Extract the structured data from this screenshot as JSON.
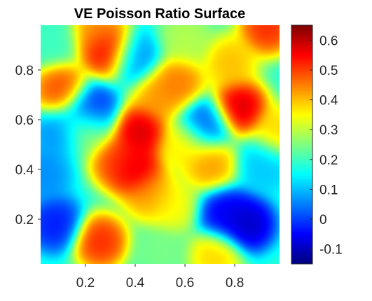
{
  "chart_data": {
    "type": "heatmap",
    "title": "VE Poisson Ratio Surface",
    "xlabel": "",
    "ylabel": "",
    "xlim": [
      0.02,
      0.98
    ],
    "ylim": [
      0.02,
      0.98
    ],
    "x_ticks": [
      {
        "value": 0.2,
        "label": "0.2"
      },
      {
        "value": 0.4,
        "label": "0.4"
      },
      {
        "value": 0.6,
        "label": "0.6"
      },
      {
        "value": 0.8,
        "label": "0.8"
      }
    ],
    "y_ticks": [
      {
        "value": 0.2,
        "label": "0.2"
      },
      {
        "value": 0.4,
        "label": "0.4"
      },
      {
        "value": 0.6,
        "label": "0.6"
      },
      {
        "value": 0.8,
        "label": "0.8"
      }
    ],
    "colormap": "jet",
    "clim": [
      -0.15,
      0.65
    ],
    "colorbar_ticks": [
      {
        "value": -0.1,
        "label": "-0.1"
      },
      {
        "value": 0,
        "label": "0"
      },
      {
        "value": 0.1,
        "label": "0.1"
      },
      {
        "value": 0.2,
        "label": "0.2"
      },
      {
        "value": 0.3,
        "label": "0.3"
      },
      {
        "value": 0.4,
        "label": "0.4"
      },
      {
        "value": 0.5,
        "label": "0.5"
      },
      {
        "value": 0.6,
        "label": "0.6"
      }
    ],
    "baseline_value": 0.18,
    "surface_features": [
      {
        "x": 0.29,
        "y": 0.88,
        "value": 0.6
      },
      {
        "x": 0.1,
        "y": 0.72,
        "value": 0.52
      },
      {
        "x": 0.25,
        "y": 0.96,
        "value": 0.45
      },
      {
        "x": 0.42,
        "y": 0.55,
        "value": 0.62
      },
      {
        "x": 0.4,
        "y": 0.4,
        "value": 0.62
      },
      {
        "x": 0.33,
        "y": 0.43,
        "value": 0.52
      },
      {
        "x": 0.5,
        "y": 0.7,
        "value": 0.45
      },
      {
        "x": 0.57,
        "y": 0.75,
        "value": 0.48
      },
      {
        "x": 0.46,
        "y": 0.3,
        "value": 0.45
      },
      {
        "x": 0.82,
        "y": 0.65,
        "value": 0.62
      },
      {
        "x": 0.78,
        "y": 0.83,
        "value": 0.42
      },
      {
        "x": 0.93,
        "y": 0.97,
        "value": 0.55
      },
      {
        "x": 0.7,
        "y": 0.42,
        "value": 0.45
      },
      {
        "x": 0.26,
        "y": 0.11,
        "value": 0.55
      },
      {
        "x": 0.55,
        "y": 0.25,
        "value": 0.36
      },
      {
        "x": 0.6,
        "y": 0.5,
        "value": 0.38
      },
      {
        "x": 0.2,
        "y": 0.56,
        "value": 0.3
      },
      {
        "x": 0.98,
        "y": 0.55,
        "value": 0.4
      },
      {
        "x": 0.22,
        "y": 0.64,
        "value": -0.05
      },
      {
        "x": 0.1,
        "y": 0.55,
        "value": 0.05
      },
      {
        "x": 0.08,
        "y": 0.18,
        "value": -0.05
      },
      {
        "x": 0.85,
        "y": 0.18,
        "value": -0.12
      },
      {
        "x": 0.76,
        "y": 0.22,
        "value": -0.08
      },
      {
        "x": 0.68,
        "y": 0.58,
        "value": 0.0
      },
      {
        "x": 0.06,
        "y": 0.92,
        "value": 0.2
      },
      {
        "x": 0.4,
        "y": 0.85,
        "value": 0.05
      },
      {
        "x": 0.6,
        "y": 0.92,
        "value": 0.3
      },
      {
        "x": 0.92,
        "y": 0.42,
        "value": 0.1
      },
      {
        "x": 0.03,
        "y": 0.38,
        "value": 0.05
      },
      {
        "x": 0.5,
        "y": 0.06,
        "value": 0.25
      },
      {
        "x": 0.72,
        "y": 0.05,
        "value": 0.4
      }
    ]
  }
}
